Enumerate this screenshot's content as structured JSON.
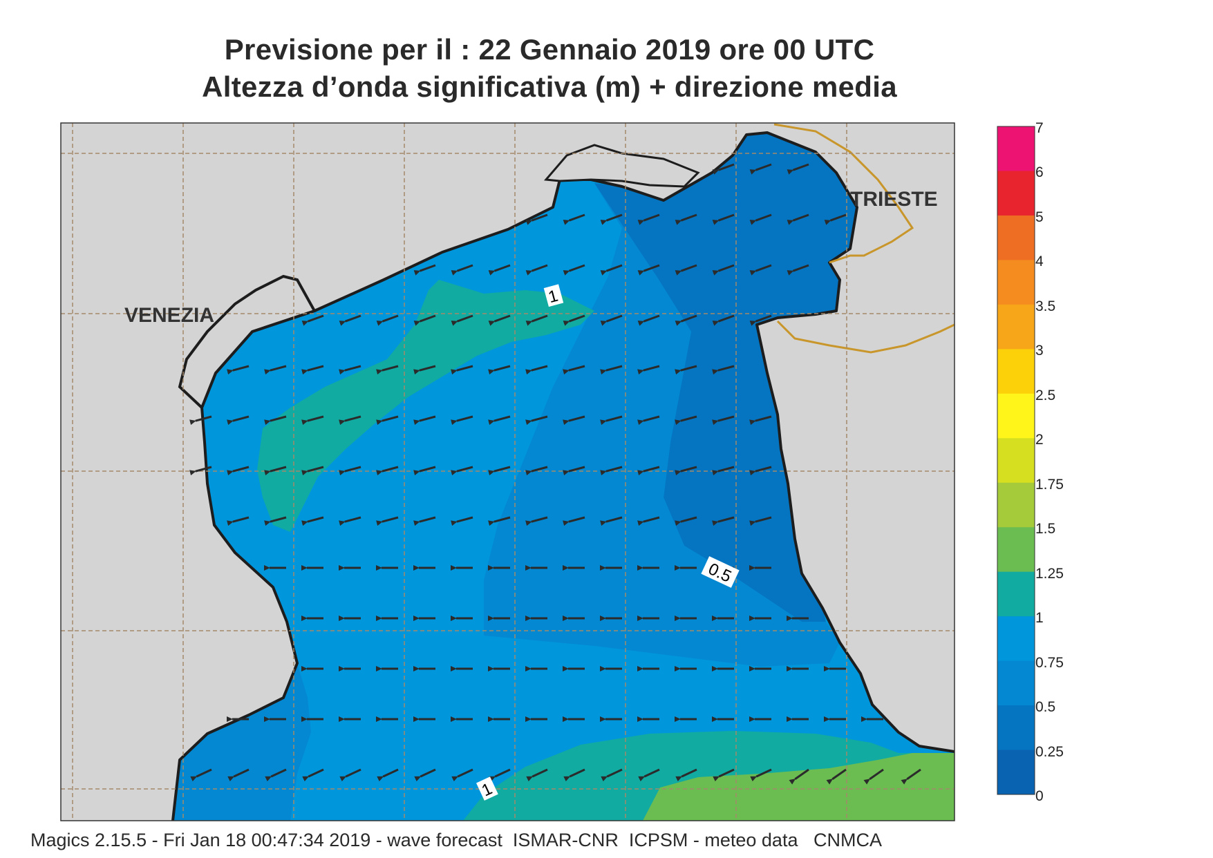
{
  "title": {
    "line1": "Previsione per il  :  22  Gennaio  2019   ore 00 UTC",
    "line2": "Altezza d’onda significativa (m) + direzione media"
  },
  "places": {
    "venezia": "VENEZIA",
    "trieste": "TRIESTE"
  },
  "contour_labels": {
    "top": "1",
    "middle": "0.5",
    "bottom": "1"
  },
  "legend": {
    "labels": [
      "7",
      "6",
      "5",
      "4",
      "3.5",
      "3",
      "2.5",
      "2",
      "1.75",
      "1.5",
      "1.25",
      "1",
      "0.75",
      "0.5",
      "0.25",
      "0"
    ],
    "colors": [
      "#ec1373",
      "#e8252e",
      "#ee6e24",
      "#f58c20",
      "#f7a61a",
      "#fdd10a",
      "#fff51a",
      "#d6e021",
      "#a5cb3b",
      "#6bbd52",
      "#11aba2",
      "#0096dc",
      "#0488d2",
      "#0575c1",
      "#0a63b1"
    ]
  },
  "footer": "Magics 2.15.5 - Fri Jan 18 00:47:34 2019 - wave forecast  ISMAR-CNR  ICPSM - meteo data   CNMCA",
  "colors": {
    "land": "#d4d4d4",
    "coast": "#1d1d1d",
    "border": "#c8962a",
    "sea_low": "#0575c1",
    "sea_mid": "#0488d2",
    "sea_high": "#0096dc",
    "teal": "#11aba2",
    "green": "#6bbd52",
    "arrow": "#2b2b2b"
  }
}
